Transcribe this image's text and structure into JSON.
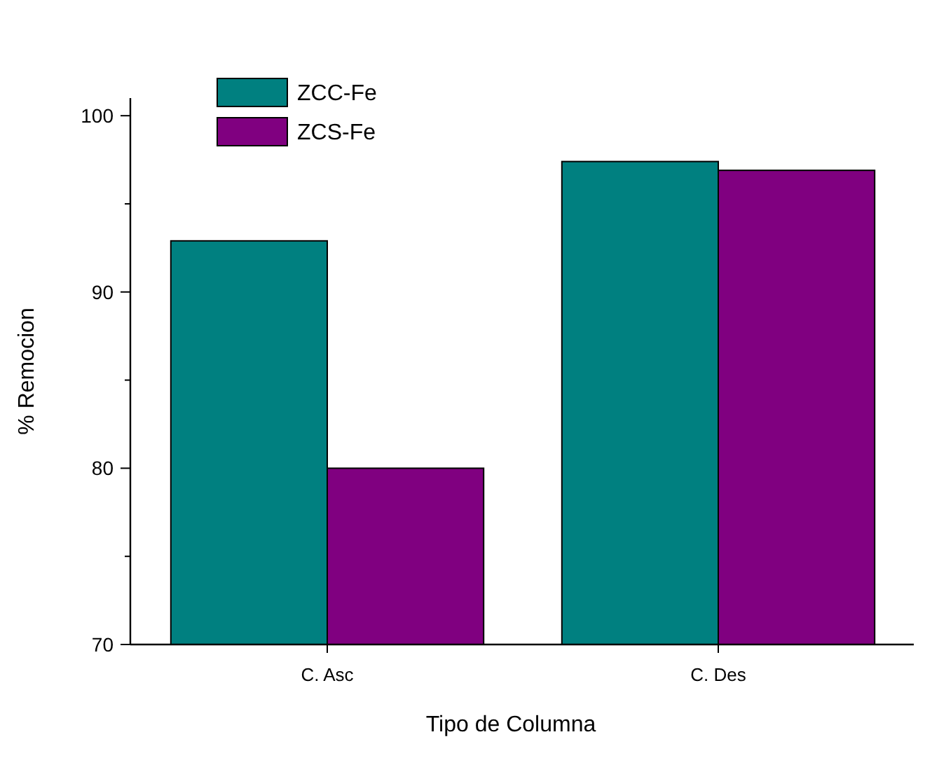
{
  "chart_data": {
    "type": "bar",
    "xlabel": "Tipo de Columna",
    "ylabel": "% Remocion",
    "categories": [
      "C. Asc",
      "C. Des"
    ],
    "series": [
      {
        "name": "ZCC-Fe",
        "color": "#008080",
        "values": [
          92.9,
          97.4
        ]
      },
      {
        "name": "ZCS-Fe",
        "color": "#800080",
        "values": [
          80.0,
          96.9
        ]
      }
    ],
    "ylim": [
      70,
      101
    ],
    "yticks": [
      70,
      80,
      90,
      100
    ],
    "grid": false,
    "legend": "top left"
  }
}
